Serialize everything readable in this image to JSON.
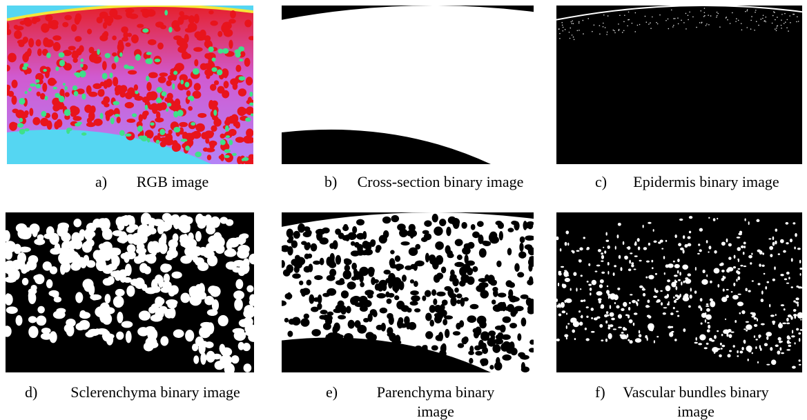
{
  "panels": [
    {
      "letter": "a)",
      "caption": "RGB image"
    },
    {
      "letter": "b)",
      "caption": "Cross-section binary image"
    },
    {
      "letter": "c)",
      "caption": "Epidermis binary image"
    },
    {
      "letter": "d)",
      "caption": "Sclerenchyma binary image"
    },
    {
      "letter": "e)",
      "caption": "Parenchyma binary image"
    },
    {
      "letter": "f)",
      "caption": "Vascular bundles binary image"
    }
  ]
}
